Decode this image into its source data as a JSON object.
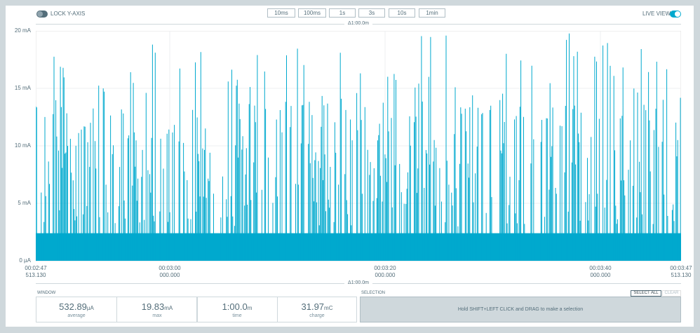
{
  "header": {
    "lock_y_axis": {
      "label": "LOCK Y-AXIS",
      "on": false
    },
    "live_view": {
      "label": "LIVE VIEW",
      "on": true
    },
    "zoom_buttons": [
      "10ms",
      "100ms",
      "1s",
      "3s",
      "10s",
      "1min"
    ]
  },
  "span_label": "Δ1:00.0m",
  "colors": {
    "trace": "#00a9ce",
    "accent": "#00a9ce",
    "background": "#cfd8dc"
  },
  "chart_data": {
    "type": "line",
    "ylabel": "",
    "y_ticks": [
      "20 mA",
      "15 mA",
      "10 mA",
      "5 mA",
      "0 µA"
    ],
    "ylim": [
      0,
      20
    ],
    "y_unit": "mA",
    "x_ticks": [
      {
        "time": "00:02:47",
        "sub": "513.130"
      },
      {
        "time": "00:03:00",
        "sub": "000.000"
      },
      {
        "time": "00:03:20",
        "sub": "000.000"
      },
      {
        "time": "00:03:40",
        "sub": "000.000"
      },
      {
        "time": "00:03:47",
        "sub": "513.130"
      }
    ],
    "xlim_seconds": [
      167.513,
      227.513
    ],
    "baseline_band_mA": [
      0,
      2.4
    ],
    "max_mA": 19.83,
    "grid": true
  },
  "window": {
    "title": "WINDOW",
    "stats": [
      {
        "value": "532.89",
        "unit": "µA",
        "name": "average"
      },
      {
        "value": "19.83",
        "unit": "mA",
        "name": "max"
      },
      {
        "value": "1:00.0",
        "unit": "m",
        "name": "time"
      },
      {
        "value": "31.97",
        "unit": "mC",
        "name": "charge"
      }
    ]
  },
  "selection": {
    "title": "SELECTION",
    "select_all": "SELECT ALL",
    "clear": "CLEAR",
    "hint": "Hold SHIFT+LEFT CLICK and DRAG to make a selection"
  }
}
